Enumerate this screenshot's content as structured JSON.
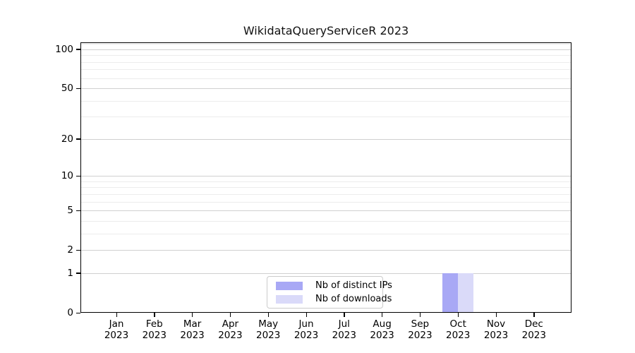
{
  "title": "WikidataQueryServiceR 2023",
  "colors": {
    "distinct_ips": "#a8a8f5",
    "downloads": "#dadaf9",
    "grid_major": "#d0d0d0",
    "grid_minor": "#ececec",
    "axis": "#000000",
    "legend_border": "#cbcbcb"
  },
  "chart_data": {
    "type": "bar",
    "title": "WikidataQueryServiceR 2023",
    "categories": [
      "Jan",
      "Feb",
      "Mar",
      "Apr",
      "May",
      "Jun",
      "Jul",
      "Aug",
      "Sep",
      "Oct",
      "Nov",
      "Dec"
    ],
    "category_year": "2023",
    "series": [
      {
        "name": "Nb of distinct IPs",
        "color": "#a8a8f5",
        "values": [
          0,
          0,
          0,
          0,
          0,
          0,
          0,
          0,
          0,
          1,
          0,
          0
        ]
      },
      {
        "name": "Nb of downloads",
        "color": "#dadaf9",
        "values": [
          0,
          0,
          0,
          0,
          0,
          0,
          0,
          0,
          0,
          1,
          0,
          0
        ]
      }
    ],
    "y_axis": {
      "scale": "log1p",
      "ylim": [
        0,
        113
      ],
      "major_ticks": [
        0,
        1,
        2,
        5,
        10,
        20,
        50,
        100
      ],
      "minor_ticks": [
        3,
        4,
        6,
        7,
        8,
        9,
        30,
        40,
        60,
        70,
        80,
        90,
        110
      ]
    },
    "x_axis": {
      "label_lines": 2
    },
    "grid": true,
    "legend": {
      "position": "inside-bottom-center",
      "entries": [
        "Nb of distinct IPs",
        "Nb of downloads"
      ]
    }
  }
}
